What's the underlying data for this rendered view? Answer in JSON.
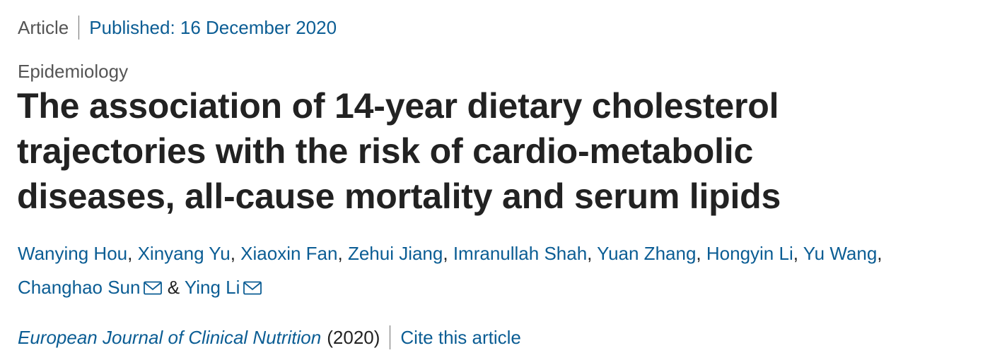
{
  "header": {
    "article_type": "Article",
    "published": "Published: 16 December 2020"
  },
  "subject": "Epidemiology",
  "title_lines": [
    "The association of 14-year dietary cholesterol",
    "trajectories with the risk of cardio-metabolic",
    "diseases, all-cause mortality and serum lipids"
  ],
  "authors": [
    {
      "name": "Wanying Hou"
    },
    {
      "name": "Xinyang Yu"
    },
    {
      "name": "Xiaoxin Fan"
    },
    {
      "name": "Zehui Jiang"
    },
    {
      "name": "Imranullah Shah"
    },
    {
      "name": "Yuan Zhang"
    },
    {
      "name": "Hongyin Li"
    },
    {
      "name": "Yu Wang"
    },
    {
      "name": "Changhao Sun",
      "icon": "mail-icon"
    },
    {
      "name": "Ying Li",
      "icon": "mail-icon"
    }
  ],
  "authors_sep": ",",
  "authors_final_sep": "&",
  "citation": {
    "journal": "European Journal of Clinical Nutrition",
    "year": "(2020)",
    "cite_label": "Cite this article"
  },
  "colors": {
    "link": "#0b5d94",
    "text": "#222222",
    "muted": "#555555"
  }
}
